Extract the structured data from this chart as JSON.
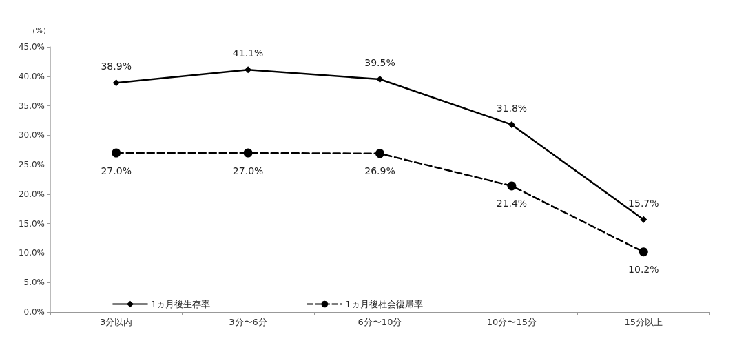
{
  "chart_data": {
    "type": "line",
    "ylabel": "（%）",
    "categories": [
      "3分以内",
      "3分〜6分",
      "6分〜10分",
      "10分〜15分",
      "15分以上"
    ],
    "series": [
      {
        "name": "1ヵ月後生存率",
        "color": "#000000",
        "values": [
          38.9,
          41.1,
          39.5,
          31.8,
          15.7
        ],
        "value_labels": [
          "38.9%",
          "41.1%",
          "39.5%",
          "31.8%",
          "15.7%"
        ],
        "marker": "diamond",
        "line_style": "solid"
      },
      {
        "name": "1ヵ月後社会復帰率",
        "color": "#000000",
        "values": [
          27.0,
          27.0,
          26.9,
          21.4,
          10.2
        ],
        "value_labels": [
          "27.0%",
          "27.0%",
          "26.9%",
          "21.4%",
          "10.2%"
        ],
        "marker": "circle",
        "line_style": "dashed"
      }
    ],
    "ylim": [
      0,
      45
    ],
    "yticks": [
      {
        "value": 0,
        "label": "0.0%"
      },
      {
        "value": 5,
        "label": "5.0%"
      },
      {
        "value": 10,
        "label": "10.0%"
      },
      {
        "value": 15,
        "label": "15.0%"
      },
      {
        "value": 20,
        "label": "20.0%"
      },
      {
        "value": 25,
        "label": "25.0%"
      },
      {
        "value": 30,
        "label": "30.0%"
      },
      {
        "value": 35,
        "label": "35.0%"
      },
      {
        "value": 40,
        "label": "40.0%"
      },
      {
        "value": 45,
        "label": "45.0%"
      }
    ],
    "grid": false,
    "legend": "bottom left"
  }
}
